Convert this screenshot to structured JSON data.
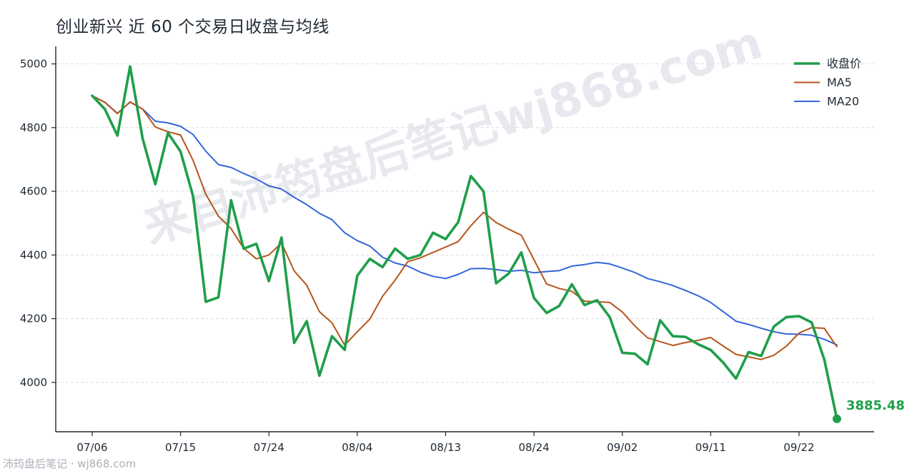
{
  "footer": {
    "credit": "沛筠盘后笔记 · wj868.com"
  },
  "watermark": {
    "text": "来自沛筠盘后笔记wj868.com"
  },
  "colors": {
    "close": "#1f9e4a",
    "ma5": "#b5561a",
    "ma20": "#3266d9",
    "grid": "#d9dde3",
    "axis": "#1f2933"
  },
  "chart_data": {
    "type": "line",
    "title": "创业新兴 近 60 个交易日收盘与均线",
    "xlabel": "",
    "ylabel": "",
    "ylim": [
      3845,
      5055
    ],
    "yticks": [
      4000,
      4200,
      4400,
      4600,
      4800,
      5000
    ],
    "grid": "horizontal dashed",
    "legend_position": "top-right",
    "x_ticks": [
      {
        "label": "07/06",
        "index": 0
      },
      {
        "label": "07/15",
        "index": 7
      },
      {
        "label": "07/24",
        "index": 14
      },
      {
        "label": "08/04",
        "index": 21
      },
      {
        "label": "08/13",
        "index": 28
      },
      {
        "label": "08/24",
        "index": 35
      },
      {
        "label": "09/02",
        "index": 42
      },
      {
        "label": "09/11",
        "index": 49
      },
      {
        "label": "09/22",
        "index": 56
      }
    ],
    "series": [
      {
        "name": "收盘价",
        "color": "#1f9e4a",
        "values": [
          4900,
          4858,
          4775,
          4992,
          4765,
          4622,
          4783,
          4725,
          4583,
          4253,
          4267,
          4572,
          4420,
          4435,
          4318,
          4455,
          4124,
          4192,
          4021,
          4145,
          4102,
          4335,
          4388,
          4362,
          4420,
          4388,
          4400,
          4470,
          4450,
          4503,
          4648,
          4600,
          4311,
          4342,
          4408,
          4265,
          4218,
          4240,
          4308,
          4243,
          4258,
          4205,
          4093,
          4090,
          4057,
          4195,
          4145,
          4143,
          4120,
          4102,
          4062,
          4012,
          4095,
          4083,
          4175,
          4205,
          4208,
          4188,
          4072,
          3885.48
        ]
      },
      {
        "name": "MA5",
        "color": "#b5561a",
        "values": [
          4900,
          4879,
          4844,
          4881,
          4858,
          4802,
          4787,
          4777,
          4696,
          4591,
          4522,
          4483,
          4421,
          4388,
          4400,
          4438,
          4350,
          4305,
          4222,
          4187,
          4117,
          4159,
          4199,
          4270,
          4321,
          4379,
          4391,
          4408,
          4425,
          4442,
          4492,
          4534,
          4502,
          4481,
          4462,
          4385,
          4309,
          4295,
          4286,
          4255,
          4253,
          4251,
          4221,
          4177,
          4140,
          4128,
          4116,
          4125,
          4132,
          4141,
          4114,
          4088,
          4080,
          4072,
          4085,
          4114,
          4155,
          4172,
          4170,
          4112
        ]
      },
      {
        "name": "MA20",
        "color": "#3266d9",
        "values": [
          4900,
          4880,
          4845,
          4880,
          4858,
          4820,
          4815,
          4804,
          4778,
          4726,
          4684,
          4675,
          4656,
          4639,
          4617,
          4607,
          4581,
          4558,
          4531,
          4511,
          4470,
          4445,
          4428,
          4393,
          4375,
          4365,
          4346,
          4333,
          4326,
          4339,
          4357,
          4358,
          4354,
          4349,
          4352,
          4344,
          4348,
          4351,
          4365,
          4370,
          4377,
          4372,
          4359,
          4345,
          4326,
          4316,
          4304,
          4289,
          4272,
          4251,
          4222,
          4192,
          4182,
          4170,
          4159,
          4152,
          4151,
          4148,
          4135,
          4118
        ]
      }
    ],
    "annotations": [
      {
        "series": "收盘价",
        "index": 59,
        "text": "3885.48"
      }
    ]
  }
}
